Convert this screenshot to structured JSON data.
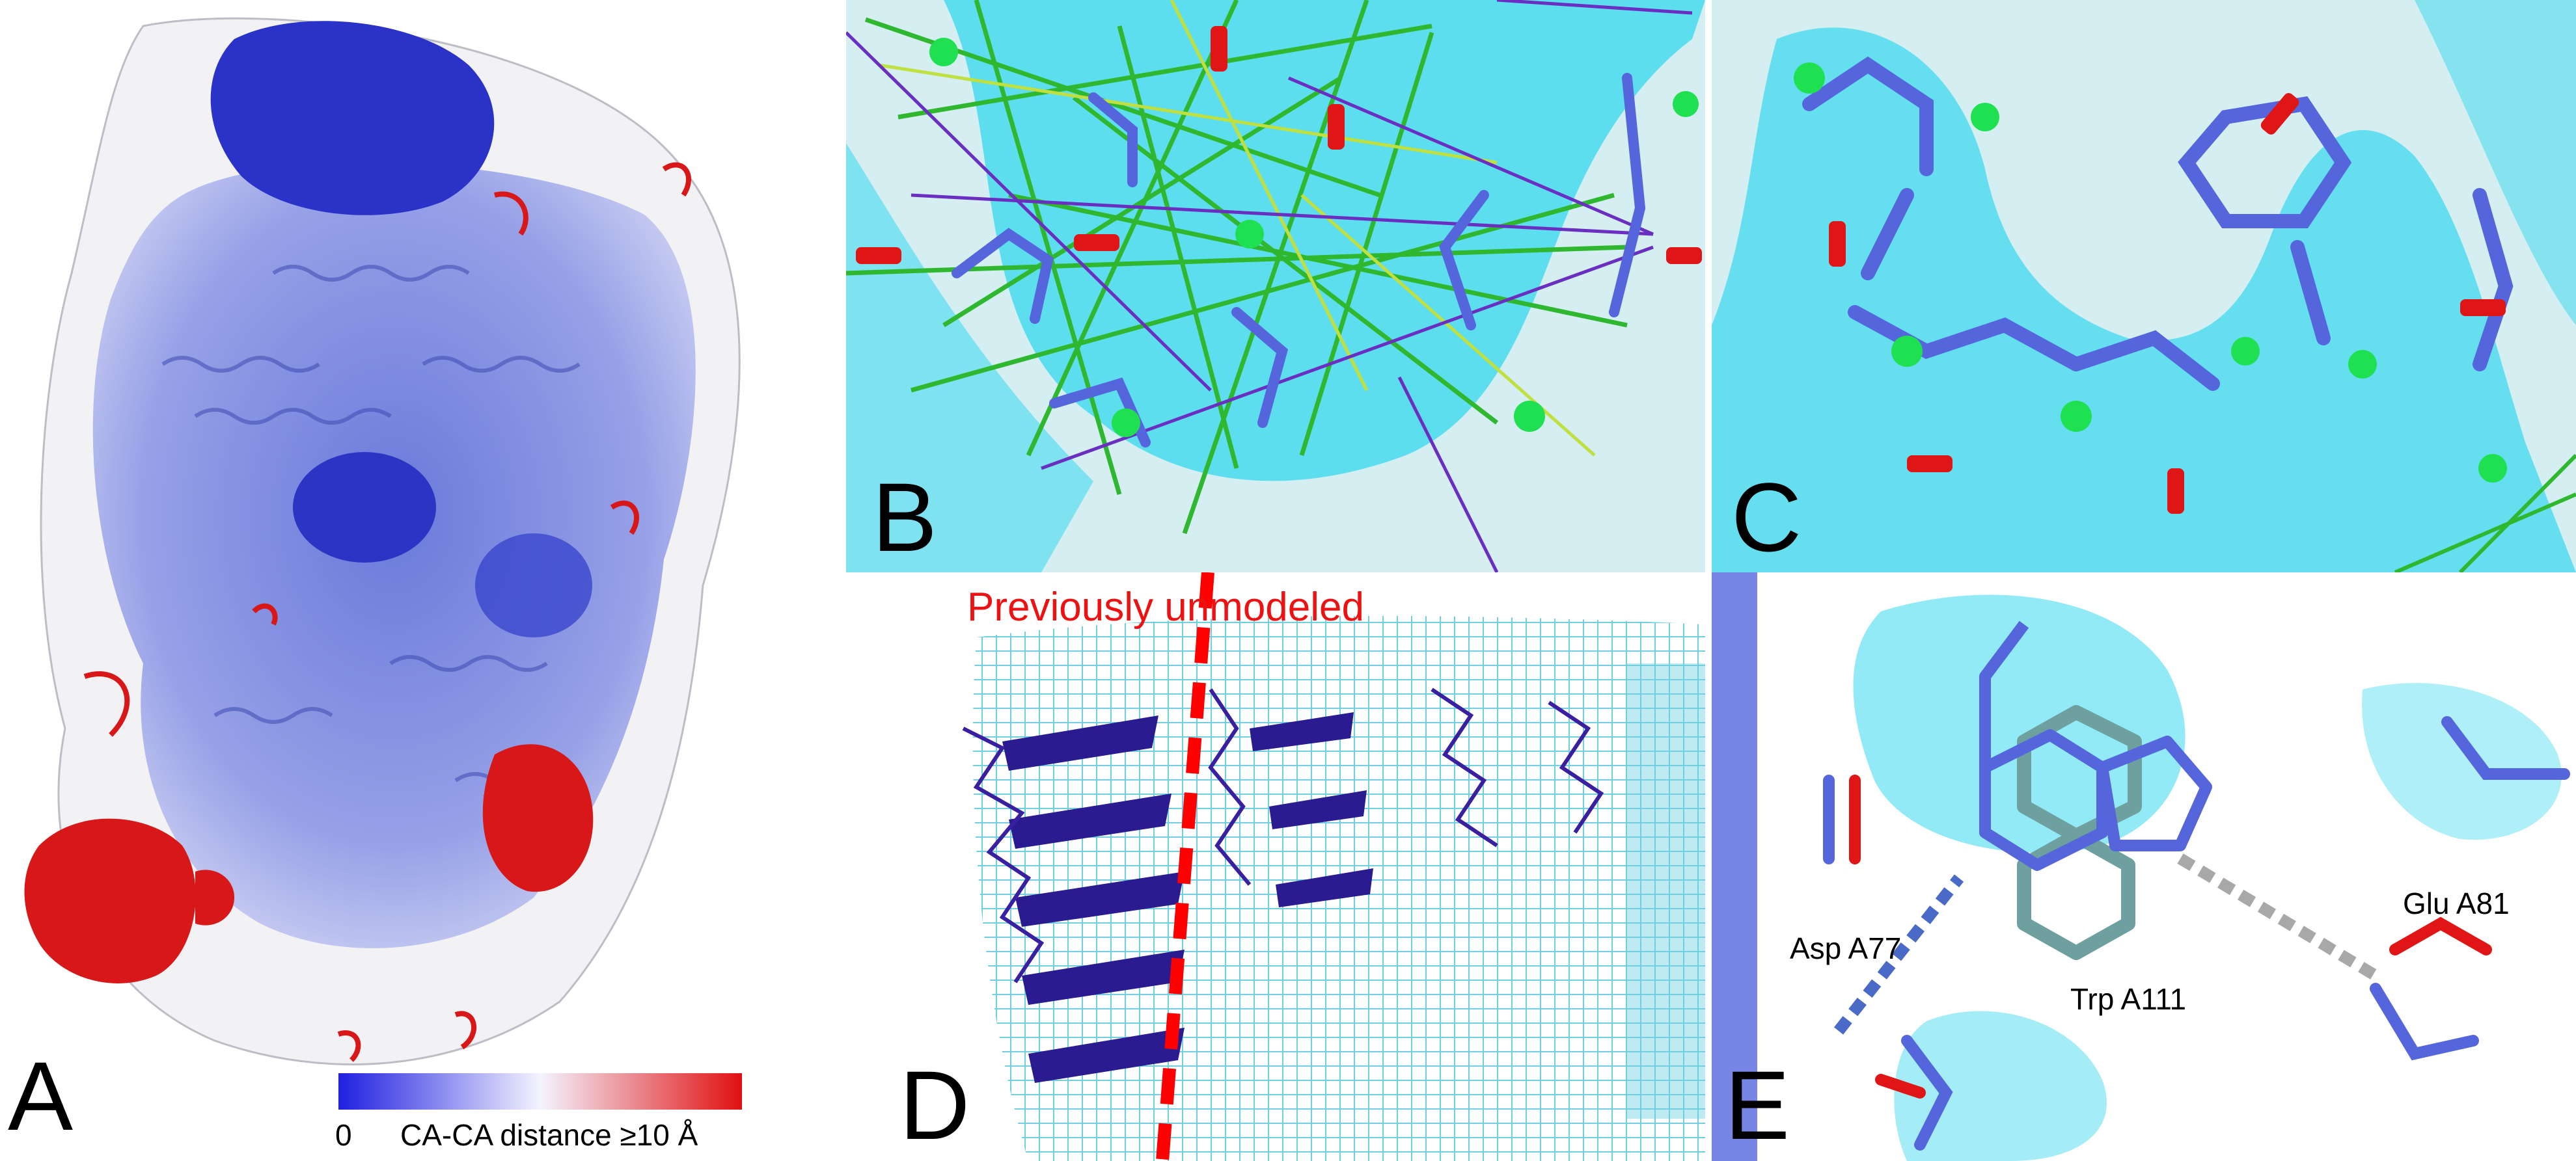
{
  "panels": {
    "A": {
      "label": "A"
    },
    "B": {
      "label": "B"
    },
    "C": {
      "label": "C"
    },
    "D": {
      "label": "D",
      "annotation": "Previously unmodeled"
    },
    "E": {
      "label": "E",
      "residues": {
        "asp": "Asp A77",
        "trp": "Trp A111",
        "glu": "Glu A81"
      }
    }
  },
  "colorbar": {
    "min_label": "0",
    "max_label": "CA-CA distance ≥10 Å",
    "colors": {
      "low": "#1f1fe0",
      "mid": "#f4f4ff",
      "high": "#e01010"
    }
  },
  "colors": {
    "cyan_density": "#36d8ee",
    "ribbon_blue": "#6f7fe0",
    "stick_blue": "#5566dd",
    "oxygen_red": "#e01515",
    "atom_green": "#1ee050",
    "bond_green": "#2fb82f",
    "restraint_purple": "#6a2fc0",
    "dashed_red": "#ff0000",
    "hbond_blue": "#4a6ac8",
    "hbond_gray": "#a8a8a8"
  }
}
